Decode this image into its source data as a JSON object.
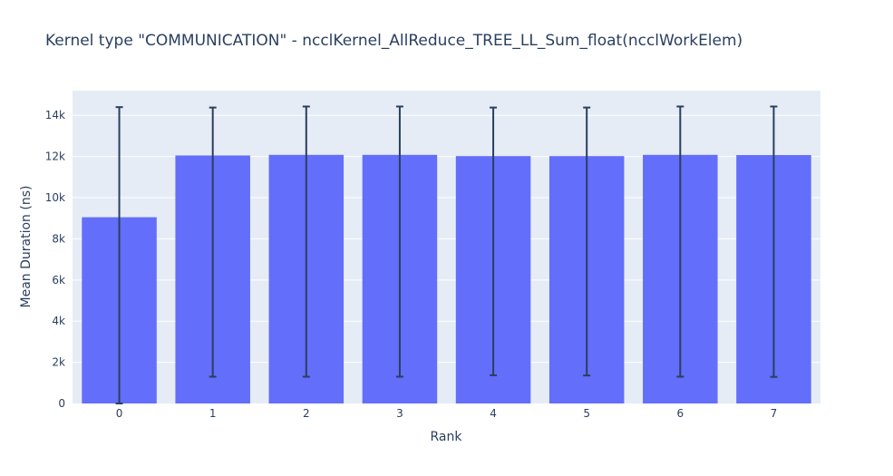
{
  "chart_data": {
    "type": "bar",
    "title": "Kernel type \"COMMUNICATION\" - ncclKernel_AllReduce_TREE_LL_Sum_float(ncclWorkElem)",
    "xlabel": "Rank",
    "ylabel": "Mean Duration (ns)",
    "categories": [
      "0",
      "1",
      "2",
      "3",
      "4",
      "5",
      "6",
      "7"
    ],
    "values": [
      9050,
      12050,
      12080,
      12080,
      12020,
      12020,
      12080,
      12070
    ],
    "error_low": [
      9050,
      10750,
      10780,
      10780,
      10650,
      10660,
      10780,
      10780
    ],
    "error_high": [
      14400,
      14380,
      14430,
      14430,
      14380,
      14380,
      14430,
      14430
    ],
    "ylim": [
      0,
      15200
    ],
    "yticks": [
      0,
      2000,
      4000,
      6000,
      8000,
      10000,
      12000,
      14000
    ],
    "ytick_labels": [
      "0",
      "2k",
      "4k",
      "6k",
      "8k",
      "10k",
      "12k",
      "14k"
    ],
    "grid": true,
    "bar_color": "#636efa",
    "error_color": "#2a3f5f",
    "plot_bg": "#e5ecf6",
    "grid_color": "#ffffff"
  }
}
